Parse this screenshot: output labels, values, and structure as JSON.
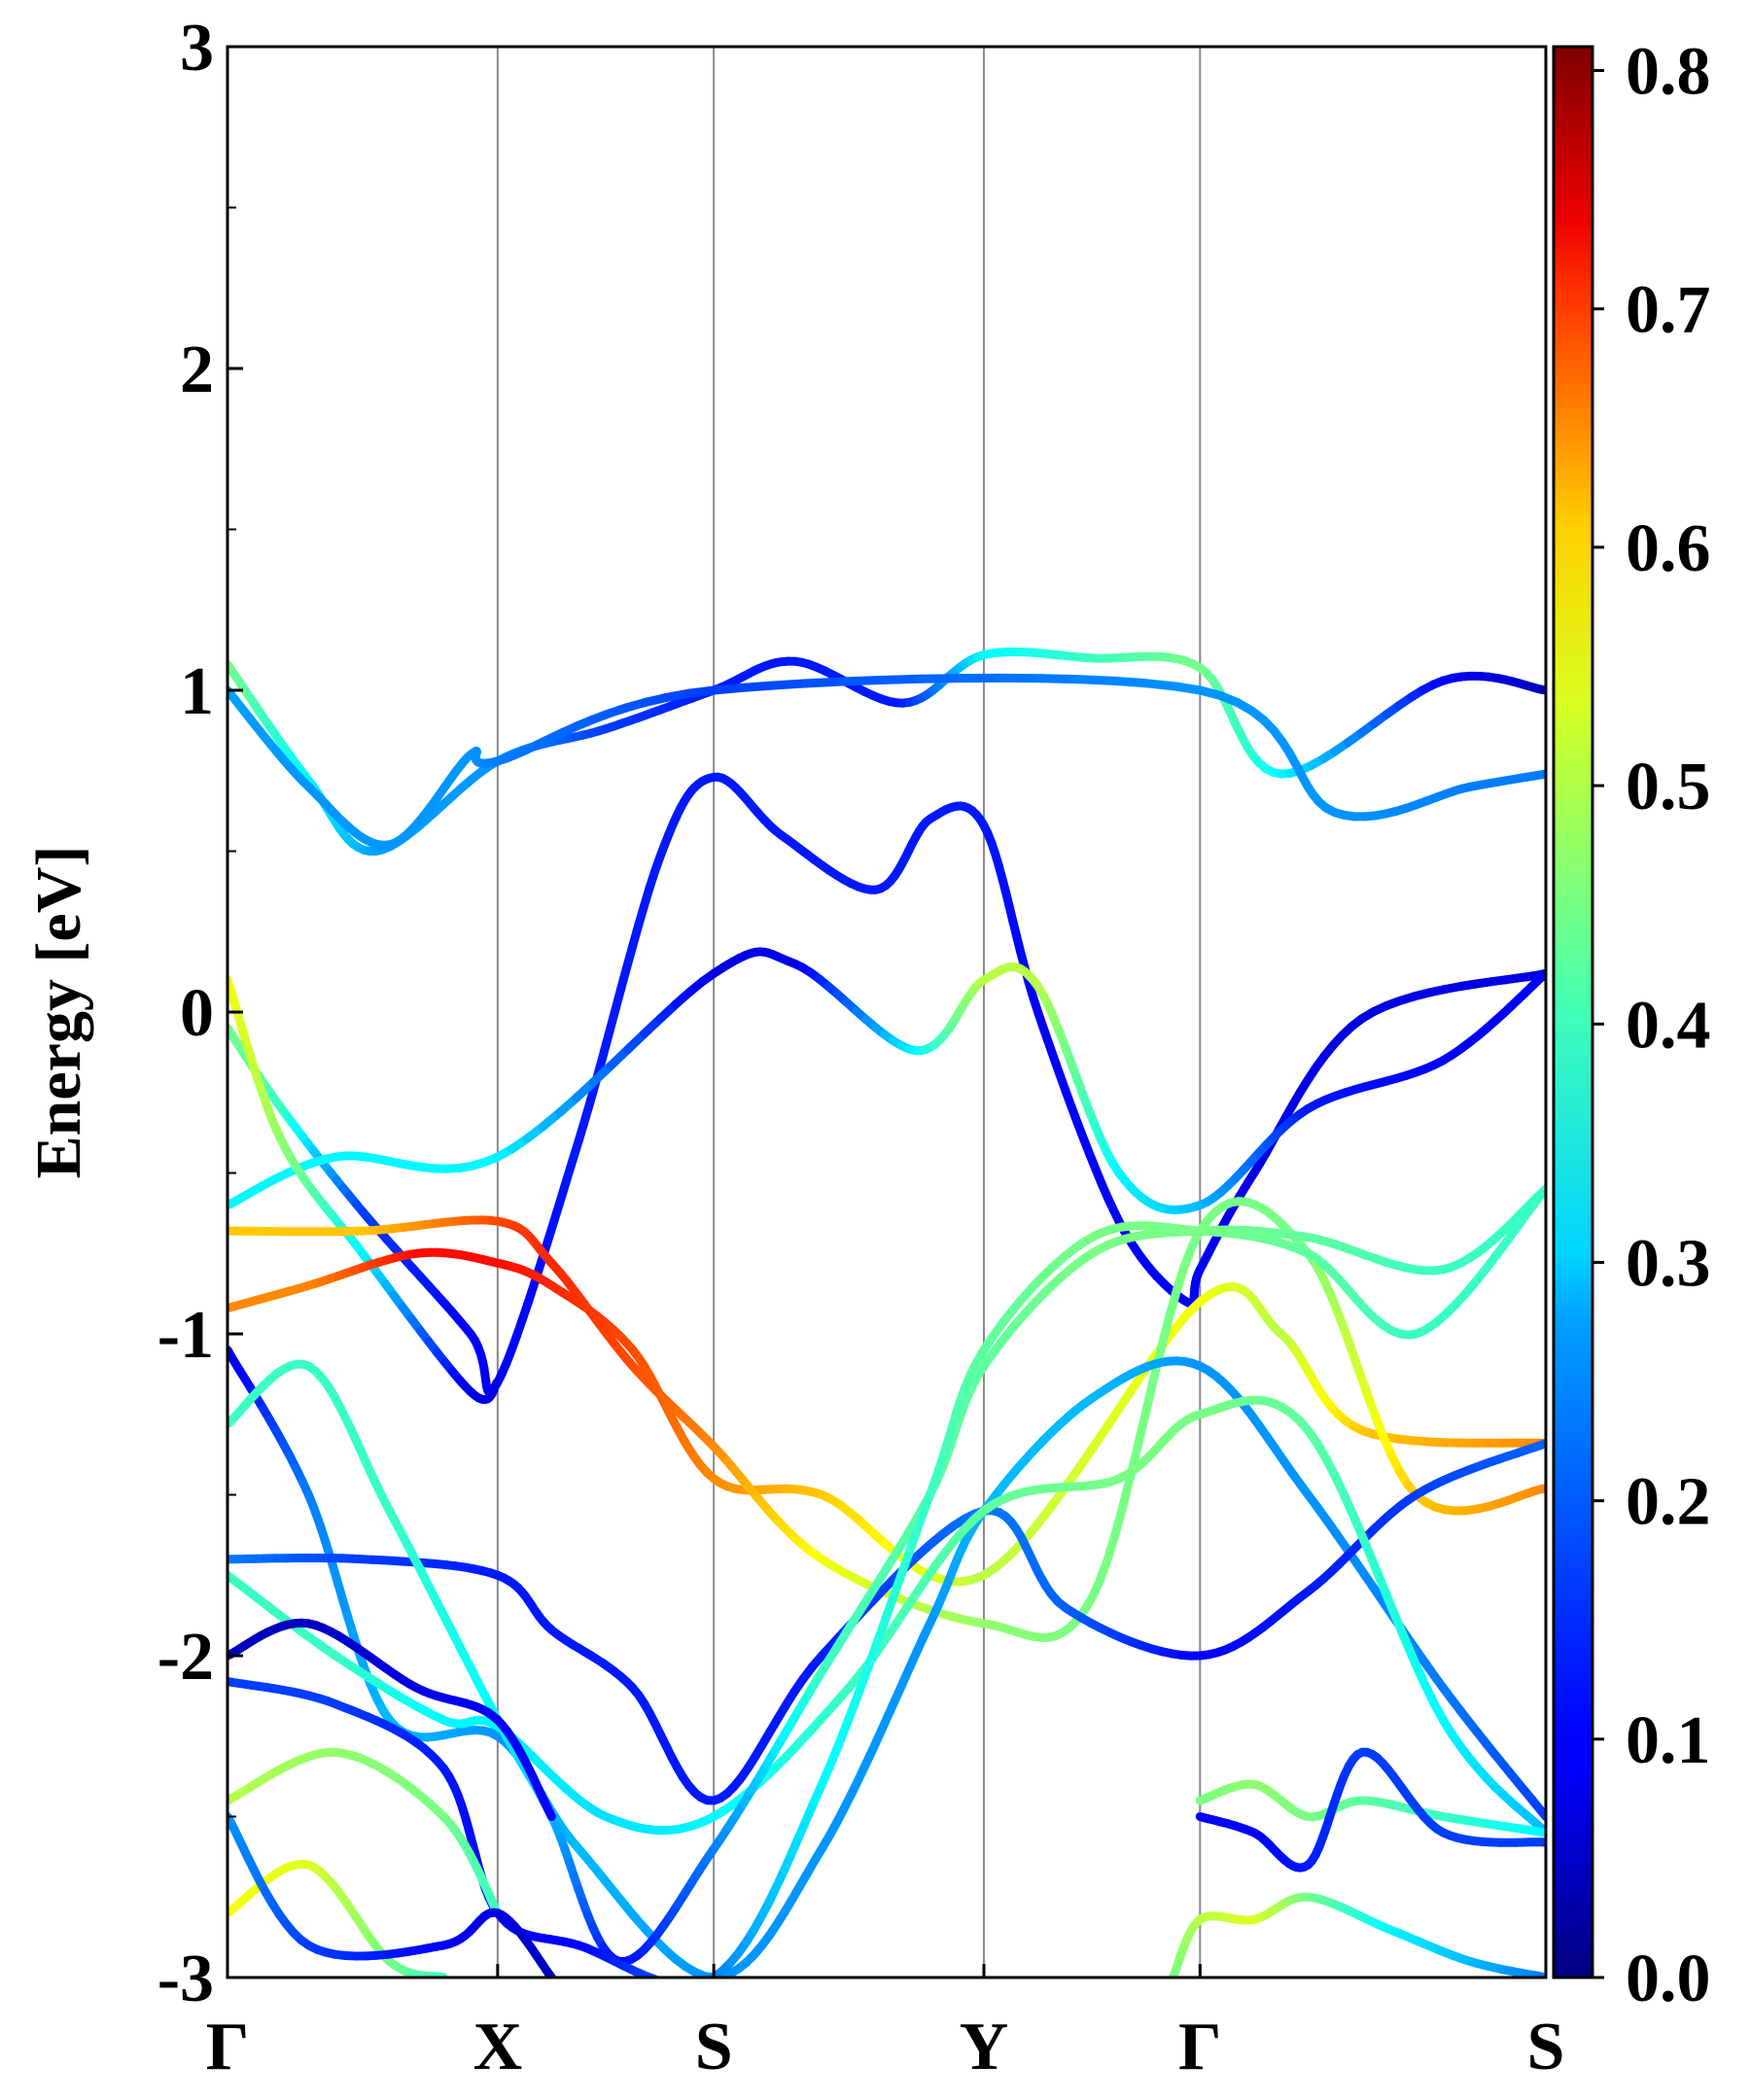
{
  "chart_data": {
    "type": "line",
    "title": "",
    "xlabel": "",
    "ylabel": "Energy [eV]",
    "ylim": [
      -3,
      3
    ],
    "yticks": [
      "3",
      "2",
      "1",
      "0",
      "-1",
      "-2",
      "-3"
    ],
    "y_tick_values": [
      3,
      2,
      1,
      0,
      -1,
      -2,
      -3
    ],
    "x_ticks": [
      {
        "label": "Γ",
        "k": 0.0
      },
      {
        "label": "X",
        "k": 1.0
      },
      {
        "label": "S",
        "k": 1.8
      },
      {
        "label": "Y",
        "k": 2.8
      },
      {
        "label": "Γ",
        "k": 3.6
      },
      {
        "label": "S",
        "k": 4.88
      }
    ],
    "colorbar": {
      "colormap": "jet",
      "min": 0.0,
      "max": 0.81,
      "ticks": [
        "0.0",
        "0.1",
        "0.2",
        "0.3",
        "0.4",
        "0.5",
        "0.6",
        "0.7",
        "0.8"
      ],
      "tick_values": [
        0.0,
        0.1,
        0.2,
        0.3,
        0.4,
        0.5,
        0.6,
        0.7,
        0.8
      ]
    },
    "bands": [
      {
        "name": "cb-upper",
        "k": [
          0,
          0.3,
          0.55,
          1.0,
          1.4,
          1.8,
          2.1,
          2.5,
          2.8,
          3.2,
          3.6,
          3.9,
          4.5,
          4.88
        ],
        "e": [
          1.08,
          0.72,
          0.5,
          0.78,
          0.88,
          1.0,
          1.09,
          0.96,
          1.11,
          1.1,
          1.07,
          0.74,
          1.03,
          1.0
        ],
        "w": [
          0.4,
          0.3,
          0.23,
          0.22,
          0.15,
          0.12,
          0.12,
          0.12,
          0.3,
          0.35,
          0.4,
          0.3,
          0.1,
          0.05
        ]
      },
      {
        "name": "cb-lower",
        "k": [
          0,
          0.3,
          0.6,
          0.9,
          1.0,
          1.8,
          3.6,
          4.1,
          4.6,
          4.88
        ],
        "e": [
          1.0,
          0.7,
          0.52,
          0.8,
          0.78,
          1.0,
          1.0,
          0.62,
          0.7,
          0.74
        ],
        "w": [
          0.23,
          0.22,
          0.22,
          0.22,
          0.2,
          0.15,
          0.22,
          0.22,
          0.2,
          0.2
        ]
      },
      {
        "name": "b3",
        "k": [
          0,
          0.2,
          0.5,
          0.9,
          1.0,
          1.3,
          1.6,
          1.8,
          2.05,
          2.4,
          2.6,
          2.8,
          3.0,
          3.3,
          3.55,
          3.6,
          3.8,
          4.2,
          4.88
        ],
        "e": [
          -0.05,
          -0.3,
          -0.62,
          -1.0,
          -1.15,
          -0.4,
          0.48,
          0.73,
          0.55,
          0.38,
          0.6,
          0.58,
          0.0,
          -0.65,
          -0.9,
          -0.8,
          -0.5,
          -0.02,
          0.12
        ],
        "w": [
          0.4,
          0.35,
          0.15,
          0.1,
          0.1,
          0.12,
          0.12,
          0.12,
          0.12,
          0.12,
          0.12,
          0.12,
          0.1,
          0.1,
          0.1,
          0.1,
          0.08,
          0.08,
          0.08
        ]
      },
      {
        "name": "b4",
        "k": [
          0,
          0.4,
          1.0,
          1.8,
          2.1,
          2.55,
          2.8,
          3.0,
          3.3,
          3.6,
          4.0,
          4.5,
          4.88
        ],
        "e": [
          -0.6,
          -0.45,
          -0.45,
          0.12,
          0.15,
          -0.12,
          0.1,
          0.08,
          -0.5,
          -0.6,
          -0.3,
          -0.15,
          0.12
        ],
        "w": [
          0.3,
          0.3,
          0.3,
          0.08,
          0.08,
          0.3,
          0.45,
          0.45,
          0.3,
          0.25,
          0.12,
          0.1,
          0.1
        ]
      },
      {
        "name": "b5",
        "k": [
          0,
          0.2,
          0.5,
          0.9,
          1.0
        ],
        "e": [
          0.1,
          -0.4,
          -0.75,
          -1.18,
          -1.15
        ],
        "w": [
          0.5,
          0.42,
          0.3,
          0.08,
          0.08
        ]
      },
      {
        "name": "b6",
        "k": [
          0,
          0.3,
          0.7,
          1.0,
          1.2,
          1.5,
          1.8,
          2.2,
          2.8,
          3.6,
          3.9,
          4.2,
          4.88
        ],
        "e": [
          -0.92,
          -0.85,
          -0.75,
          -0.78,
          -0.85,
          -1.05,
          -1.45,
          -1.5,
          -1.75,
          -0.9,
          -1.0,
          -1.3,
          -1.34
        ],
        "w": [
          0.6,
          0.6,
          0.7,
          0.7,
          0.68,
          0.65,
          0.6,
          0.55,
          0.45,
          0.5,
          0.45,
          0.55,
          0.6
        ]
      },
      {
        "name": "b7",
        "k": [
          0,
          0.5,
          1.0,
          1.2,
          1.5,
          1.8,
          2.2,
          2.8,
          3.2,
          3.6,
          4.0,
          4.4,
          4.88
        ],
        "e": [
          -0.68,
          -0.68,
          -0.65,
          -0.78,
          -1.1,
          -1.35,
          -1.7,
          -1.9,
          -1.82,
          -0.68,
          -0.75,
          -1.5,
          -1.48
        ],
        "w": [
          0.55,
          0.55,
          0.65,
          0.68,
          0.65,
          0.6,
          0.5,
          0.42,
          0.4,
          0.4,
          0.4,
          0.55,
          0.6
        ]
      },
      {
        "name": "b8",
        "k": [
          0,
          0.3,
          0.6,
          1.0,
          1.3,
          1.8,
          2.2,
          2.6,
          2.8,
          3.2,
          3.6,
          4.0,
          4.5,
          4.88
        ],
        "e": [
          -1.05,
          -1.5,
          -2.2,
          -2.25,
          -2.6,
          -3.0,
          -2.6,
          -1.9,
          -1.55,
          -1.2,
          -1.1,
          -1.5,
          -2.1,
          -2.5
        ],
        "w": [
          0.08,
          0.2,
          0.25,
          0.22,
          0.25,
          0.22,
          0.22,
          0.22,
          0.25,
          0.25,
          0.22,
          0.22,
          0.2,
          0.15
        ]
      },
      {
        "name": "b9",
        "k": [
          0,
          0.5,
          1.0,
          1.2,
          1.5,
          1.8,
          2.2,
          2.8,
          3.1,
          3.6,
          4.0,
          4.4,
          4.88
        ],
        "e": [
          -1.7,
          -1.7,
          -1.75,
          -1.92,
          -2.1,
          -2.45,
          -2.0,
          -1.55,
          -1.85,
          -2.0,
          -1.8,
          -1.5,
          -1.34
        ],
        "w": [
          0.2,
          0.15,
          0.12,
          0.12,
          0.12,
          0.12,
          0.12,
          0.2,
          0.18,
          0.1,
          0.12,
          0.15,
          0.18
        ]
      },
      {
        "name": "b10",
        "k": [
          0,
          0.4,
          0.8,
          1.0,
          1.4,
          1.8,
          2.3,
          2.8,
          3.3,
          3.6,
          4.0,
          4.5,
          4.88
        ],
        "e": [
          -1.75,
          -2.0,
          -2.2,
          -2.22,
          -2.5,
          -2.5,
          -2.1,
          -1.55,
          -1.45,
          -1.25,
          -1.3,
          -2.2,
          -2.55
        ],
        "w": [
          0.35,
          0.35,
          0.3,
          0.3,
          0.28,
          0.3,
          0.35,
          0.38,
          0.4,
          0.4,
          0.38,
          0.3,
          0.25
        ]
      },
      {
        "name": "b11",
        "k": [
          0,
          0.3,
          0.6,
          1.0,
          1.2,
          1.45,
          1.8,
          2.2,
          2.6,
          2.8,
          3.2,
          3.6,
          4.0,
          4.5,
          4.88
        ],
        "e": [
          -1.28,
          -1.1,
          -1.55,
          -2.2,
          -2.5,
          -2.95,
          -2.6,
          -2.05,
          -1.5,
          -1.1,
          -0.75,
          -0.68,
          -0.7,
          -0.8,
          -0.55
        ],
        "w": [
          0.35,
          0.35,
          0.35,
          0.3,
          0.25,
          0.1,
          0.2,
          0.35,
          0.38,
          0.38,
          0.4,
          0.4,
          0.38,
          0.35,
          0.35
        ]
      },
      {
        "name": "b12",
        "k": [
          0,
          0.3,
          0.7,
          1.0,
          1.2
        ],
        "e": [
          -2.0,
          -1.9,
          -2.1,
          -2.2,
          -2.5
        ],
        "w": [
          0.05,
          0.05,
          0.08,
          0.1,
          0.1
        ]
      },
      {
        "name": "b13",
        "k": [
          0,
          0.4,
          0.8,
          1.0,
          1.3,
          1.8,
          2.2,
          2.6,
          2.8,
          3.2,
          3.6,
          4.0,
          4.4,
          4.88
        ],
        "e": [
          -2.08,
          -2.15,
          -2.35,
          -2.8,
          -2.9,
          -3.0,
          -2.4,
          -1.5,
          -1.05,
          -0.7,
          -0.68,
          -0.75,
          -1.0,
          -0.55
        ],
        "w": [
          0.15,
          0.15,
          0.12,
          0.1,
          0.1,
          0.2,
          0.3,
          0.35,
          0.38,
          0.4,
          0.4,
          0.38,
          0.35,
          0.35
        ]
      },
      {
        "name": "b14",
        "k": [
          0,
          0.4,
          0.8,
          1.0
        ],
        "e": [
          -2.45,
          -2.3,
          -2.5,
          -2.8
        ],
        "w": [
          0.45,
          0.42,
          0.4,
          0.35
        ]
      },
      {
        "name": "b15",
        "k": [
          0,
          0.3,
          0.6,
          0.8
        ],
        "e": [
          -2.8,
          -2.65,
          -2.95,
          -3.0
        ],
        "w": [
          0.5,
          0.48,
          0.4,
          0.35
        ]
      },
      {
        "name": "b16",
        "k": [
          0,
          0.3,
          0.8,
          1.0,
          1.2
        ],
        "e": [
          -2.5,
          -2.9,
          -2.9,
          -2.8,
          -3.0
        ],
        "w": [
          0.22,
          0.15,
          0.1,
          0.08,
          0.05
        ]
      },
      {
        "name": "b17",
        "k": [
          3.6,
          3.8,
          4.0,
          4.2,
          4.5,
          4.88
        ],
        "e": [
          -2.45,
          -2.4,
          -2.5,
          -2.45,
          -2.5,
          -2.55
        ],
        "w": [
          0.4,
          0.42,
          0.4,
          0.38,
          0.35,
          0.3
        ]
      },
      {
        "name": "b18",
        "k": [
          3.5,
          3.6,
          3.8,
          4.0,
          4.3,
          4.6,
          4.88
        ],
        "e": [
          -3.0,
          -2.82,
          -2.82,
          -2.75,
          -2.85,
          -2.95,
          -3.0
        ],
        "w": [
          0.4,
          0.45,
          0.48,
          0.4,
          0.3,
          0.25,
          0.2
        ]
      },
      {
        "name": "b19",
        "k": [
          3.6,
          3.8,
          4.0,
          4.2,
          4.5,
          4.88
        ],
        "e": [
          -2.5,
          -2.55,
          -2.65,
          -2.3,
          -2.55,
          -2.58
        ],
        "w": [
          0.1,
          0.1,
          0.12,
          0.15,
          0.15,
          0.15
        ]
      }
    ]
  }
}
